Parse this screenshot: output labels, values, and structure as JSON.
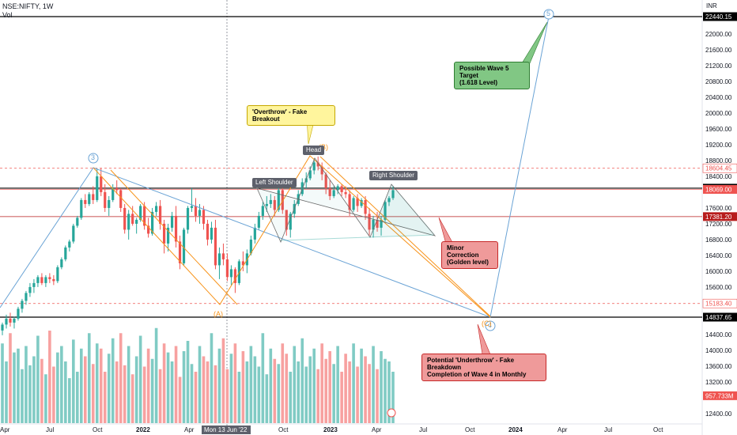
{
  "header": {
    "symbol_line": "NSE:NIFTY, 1W",
    "vol_label": "Vol"
  },
  "currency": "INR",
  "chart_data": {
    "type": "candlestick",
    "title": "NSE:NIFTY, 1W",
    "ylim": [
      12200,
      22800
    ],
    "y_ticks": [
      22000,
      21600,
      21200,
      20800,
      20400,
      20000,
      19600,
      19200,
      18800,
      18400,
      18000,
      17600,
      17200,
      16800,
      16400,
      16000,
      15600,
      15200,
      14800,
      14400,
      14000,
      13600,
      13200,
      12800,
      12400
    ],
    "y_tick_labels": [
      "22000.00",
      "21600.00",
      "21200.00",
      "20800.00",
      "20400.00",
      "20000.00",
      "19600.00",
      "19200.00",
      "18800.00",
      "18400.00",
      "18000.00",
      "17600.00",
      "17200.00",
      "16800.00",
      "16400.00",
      "16000.00",
      "15600.00",
      "15200.00",
      "14800.00",
      "14400.00",
      "14000.00",
      "13600.00",
      "13200.00",
      "12800.00",
      "12400.00"
    ],
    "x_ticks": [
      "Apr",
      "Jul",
      "Oct",
      "2022",
      "Apr",
      "Mon 13 Jun '22",
      "Oct",
      "2023",
      "Apr",
      "Jul",
      "Oct",
      "2024",
      "Apr",
      "Jul",
      "Oct"
    ],
    "price_levels": [
      {
        "label": "22440.15",
        "value": 22440.15,
        "style": "black"
      },
      {
        "label": "18604.45",
        "value": 18604.45,
        "style": "red-dash"
      },
      {
        "label": "18100.00",
        "value": 18100.0,
        "style": "black"
      },
      {
        "label": "18069.00",
        "value": 18069.0,
        "style": "red"
      },
      {
        "label": "17381.20",
        "value": 17381.2,
        "style": "red-line"
      },
      {
        "label": "15183.40",
        "value": 15183.4,
        "style": "red-dash"
      },
      {
        "label": "14837.65",
        "value": 14837.65,
        "style": "black"
      },
      {
        "label": "957.733M",
        "value": 12850,
        "style": "red"
      }
    ],
    "candles": [
      [
        14500,
        14700,
        14380,
        14650
      ],
      [
        14650,
        14900,
        14550,
        14800
      ],
      [
        14800,
        14950,
        14600,
        14700
      ],
      [
        14700,
        14850,
        14550,
        14800
      ],
      [
        14800,
        15100,
        14750,
        15050
      ],
      [
        15050,
        15300,
        14950,
        15250
      ],
      [
        15250,
        15500,
        15150,
        15450
      ],
      [
        15450,
        15700,
        15350,
        15600
      ],
      [
        15600,
        15800,
        15450,
        15700
      ],
      [
        15700,
        15900,
        15600,
        15850
      ],
      [
        15850,
        15950,
        15650,
        15700
      ],
      [
        15700,
        15900,
        15600,
        15850
      ],
      [
        15850,
        15950,
        15700,
        15800
      ],
      [
        15800,
        15900,
        15650,
        15750
      ],
      [
        15750,
        16150,
        15700,
        16100
      ],
      [
        16100,
        16350,
        16050,
        16300
      ],
      [
        16300,
        16650,
        16250,
        16600
      ],
      [
        16600,
        16800,
        16500,
        16750
      ],
      [
        16750,
        17200,
        16700,
        17150
      ],
      [
        17150,
        17400,
        17100,
        17350
      ],
      [
        17350,
        17850,
        17300,
        17800
      ],
      [
        17800,
        17950,
        17600,
        17700
      ],
      [
        17700,
        18000,
        17650,
        17950
      ],
      [
        17950,
        18150,
        17700,
        17800
      ],
      [
        17800,
        18600,
        17750,
        18400
      ],
      [
        18400,
        18600,
        17900,
        18000
      ],
      [
        18000,
        18200,
        17500,
        17600
      ],
      [
        17600,
        17900,
        17400,
        17800
      ],
      [
        17800,
        18200,
        17750,
        18100
      ],
      [
        18100,
        18300,
        17950,
        18050
      ],
      [
        18050,
        18100,
        17500,
        17600
      ],
      [
        17600,
        17700,
        16950,
        17050
      ],
      [
        17050,
        17550,
        16800,
        17450
      ],
      [
        17450,
        17650,
        17150,
        17200
      ],
      [
        17200,
        17350,
        16950,
        17300
      ],
      [
        17300,
        17700,
        17250,
        17650
      ],
      [
        17650,
        17750,
        17050,
        17150
      ],
      [
        17150,
        17350,
        16850,
        16950
      ],
      [
        16950,
        17600,
        16900,
        17500
      ],
      [
        17500,
        17750,
        17400,
        17650
      ],
      [
        17650,
        17800,
        17050,
        17200
      ],
      [
        17200,
        17300,
        16450,
        16700
      ],
      [
        16700,
        17200,
        16500,
        17100
      ],
      [
        17100,
        17500,
        17000,
        17400
      ],
      [
        17400,
        17650,
        16600,
        16750
      ],
      [
        16750,
        16900,
        16050,
        16200
      ],
      [
        16200,
        17100,
        16150,
        17050
      ],
      [
        17050,
        17650,
        16950,
        17600
      ],
      [
        17600,
        18100,
        17500,
        17650
      ],
      [
        17650,
        17850,
        17250,
        17400
      ],
      [
        17400,
        17700,
        17200,
        17550
      ],
      [
        17550,
        17650,
        17050,
        17200
      ],
      [
        17200,
        17300,
        16650,
        16800
      ],
      [
        16800,
        17250,
        16700,
        17100
      ],
      [
        17100,
        17300,
        16050,
        16150
      ],
      [
        16150,
        16600,
        15800,
        16450
      ],
      [
        16450,
        16700,
        16150,
        16300
      ],
      [
        16300,
        16450,
        15750,
        15850
      ],
      [
        15850,
        16150,
        15650,
        16050
      ],
      [
        16050,
        16100,
        15450,
        15700
      ],
      [
        15700,
        16300,
        15650,
        16250
      ],
      [
        16250,
        16500,
        16000,
        16150
      ],
      [
        16150,
        16550,
        15950,
        16450
      ],
      [
        16450,
        16900,
        16400,
        16800
      ],
      [
        16800,
        17200,
        16700,
        17100
      ],
      [
        17100,
        17500,
        17050,
        17400
      ],
      [
        17400,
        17750,
        17300,
        17650
      ],
      [
        17650,
        17900,
        17500,
        17700
      ],
      [
        17700,
        17950,
        17600,
        17800
      ],
      [
        17800,
        17900,
        17400,
        17550
      ],
      [
        17550,
        18100,
        17500,
        18050
      ],
      [
        18050,
        18100,
        17450,
        17550
      ],
      [
        17550,
        17500,
        16900,
        17050
      ],
      [
        17050,
        17500,
        16850,
        17450
      ],
      [
        17450,
        17800,
        17350,
        17700
      ],
      [
        17700,
        18050,
        17650,
        17950
      ],
      [
        17950,
        18350,
        17900,
        18250
      ],
      [
        18250,
        18500,
        18100,
        18350
      ],
      [
        18350,
        18650,
        18300,
        18550
      ],
      [
        18550,
        18850,
        18450,
        18750
      ],
      [
        18750,
        18900,
        18550,
        18650
      ],
      [
        18650,
        18750,
        18300,
        18450
      ],
      [
        18450,
        18500,
        17950,
        18100
      ],
      [
        18100,
        18300,
        17800,
        17900
      ],
      [
        17900,
        18150,
        17850,
        18050
      ],
      [
        18050,
        18200,
        17950,
        18150
      ],
      [
        18150,
        18200,
        17900,
        18000
      ],
      [
        18000,
        18150,
        17850,
        17950
      ],
      [
        17950,
        18050,
        17400,
        17550
      ],
      [
        17550,
        17900,
        17500,
        17850
      ],
      [
        17850,
        17950,
        17500,
        17650
      ],
      [
        17650,
        17850,
        17600,
        17800
      ],
      [
        17800,
        17900,
        17300,
        17450
      ],
      [
        17450,
        17600,
        16900,
        17050
      ],
      [
        17050,
        17400,
        16850,
        17300
      ],
      [
        17300,
        17500,
        17000,
        17100
      ],
      [
        17100,
        17400,
        16900,
        17300
      ],
      [
        17300,
        17800,
        17250,
        17750
      ],
      [
        17750,
        17900,
        17650,
        17850
      ],
      [
        17850,
        18150,
        17800,
        18050
      ]
    ],
    "volumes": [
      62,
      48,
      70,
      55,
      58,
      42,
      60,
      45,
      52,
      68,
      50,
      38,
      72,
      44,
      55,
      60,
      48,
      35,
      65,
      40,
      58,
      52,
      70,
      46,
      62,
      58,
      40,
      54,
      66,
      48,
      70,
      45,
      60,
      38,
      52,
      68,
      44,
      58,
      50,
      74,
      42,
      62,
      55,
      48,
      60,
      36,
      56,
      64,
      46,
      40,
      60,
      52,
      48,
      70,
      45,
      58,
      66,
      42,
      54,
      62,
      40,
      56,
      48,
      60,
      52,
      44,
      70,
      38,
      58,
      50,
      46,
      62,
      54,
      40,
      60,
      48,
      66,
      44,
      52,
      58,
      42,
      62,
      50,
      56,
      46,
      60,
      40,
      54,
      48,
      62,
      44,
      58,
      52,
      46,
      60,
      42,
      56,
      50,
      48,
      40
    ]
  },
  "patterns": {
    "wave3": "3",
    "wave5": "5",
    "waveA": "(A)",
    "waveB": "(B)",
    "waveC": "(C)",
    "wave4": "4",
    "head": "Head",
    "left_shoulder": "Left Shoulder",
    "right_shoulder": "Right Shoulder"
  },
  "annotations": {
    "overthrow": "'Overthrow' - Fake Breakout",
    "wave5_target_1": "Possible Wave 5 Target",
    "wave5_target_2": "(1.618 Level)",
    "minor_corr_1": "Minor Correction",
    "minor_corr_2": "(Golden level)",
    "underthrow_1": "Potential 'Underthrow' - Fake Breakdown",
    "underthrow_2": "Completion of Wave 4 in Monthly"
  },
  "colors": {
    "up": "#26a69a",
    "down": "#ef5350",
    "vol_up": "#80cbc4",
    "vol_down": "#f7a1a0",
    "orange": "#f7931a",
    "blue": "#6aa3d5"
  }
}
